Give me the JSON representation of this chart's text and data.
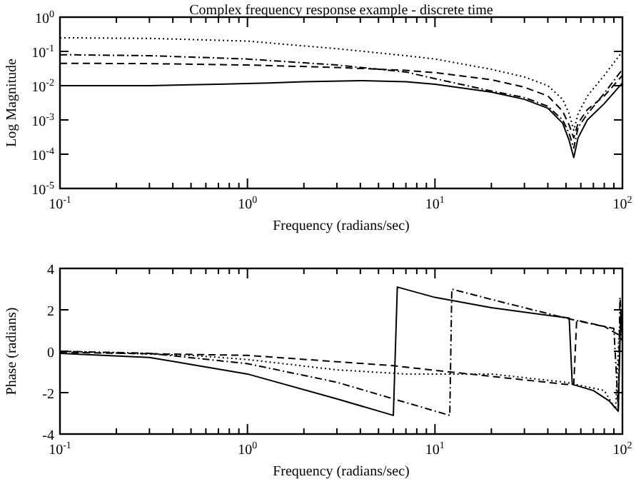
{
  "chart_data": [
    {
      "type": "line",
      "title": "Complex frequency response example - discrete time",
      "xlabel": "Frequency (radians/sec)",
      "ylabel": "Log Magnitude",
      "log": "xy",
      "xlim": [
        0.1,
        100
      ],
      "ylim": [
        1e-05,
        1
      ],
      "xticks": [
        {
          "value": 0.1,
          "label": "10$^{-1}$"
        },
        {
          "value": 0.2,
          "label": null
        },
        {
          "value": 0.3,
          "label": null
        },
        {
          "value": 0.4,
          "label": null
        },
        {
          "value": 0.5,
          "label": null
        },
        {
          "value": 0.6,
          "label": null
        },
        {
          "value": 0.7,
          "label": null
        },
        {
          "value": 0.8,
          "label": null
        },
        {
          "value": 0.9,
          "label": null
        },
        {
          "value": 1,
          "label": "10$^{0}$"
        },
        {
          "value": 2,
          "label": null
        },
        {
          "value": 3,
          "label": null
        },
        {
          "value": 4,
          "label": null
        },
        {
          "value": 5,
          "label": null
        },
        {
          "value": 6,
          "label": null
        },
        {
          "value": 7,
          "label": null
        },
        {
          "value": 8,
          "label": null
        },
        {
          "value": 9,
          "label": null
        },
        {
          "value": 10,
          "label": "10$^{1}$"
        },
        {
          "value": 20,
          "label": null
        },
        {
          "value": 30,
          "label": null
        },
        {
          "value": 40,
          "label": null
        },
        {
          "value": 50,
          "label": null
        },
        {
          "value": 60,
          "label": null
        },
        {
          "value": 70,
          "label": null
        },
        {
          "value": 80,
          "label": null
        },
        {
          "value": 90,
          "label": null
        },
        {
          "value": 100,
          "label": "10$^{2}$"
        }
      ],
      "yticks": [
        {
          "value": 1e-05,
          "label": "10$^{-5}$"
        },
        {
          "value": 0.0001,
          "label": "10$^{-4}$"
        },
        {
          "value": 0.001,
          "label": "10$^{-3}$"
        },
        {
          "value": 0.01,
          "label": "10$^{-2}$"
        },
        {
          "value": 0.1,
          "label": "10$^{-1}$"
        },
        {
          "value": 1,
          "label": "10$^{0}$"
        }
      ],
      "grid": false,
      "series": [
        {
          "color": "#000000",
          "line_style": "solid",
          "x": [
            0.1,
            0.3,
            0.7,
            1.3,
            2,
            4,
            7,
            10,
            20,
            30,
            40,
            48,
            52,
            55,
            58,
            65,
            80,
            100
          ],
          "values": [
            0.01,
            0.01,
            0.011,
            0.012,
            0.013,
            0.014,
            0.013,
            0.011,
            0.0065,
            0.004,
            0.0022,
            0.0008,
            0.00025,
            8e-05,
            0.0003,
            0.001,
            0.003,
            0.012
          ]
        },
        {
          "color": "#000000",
          "line_style": "dashdot",
          "x": [
            0.1,
            0.3,
            1,
            3,
            7,
            10,
            20,
            30,
            40,
            48,
            52,
            55,
            58,
            65,
            80,
            100
          ],
          "values": [
            0.08,
            0.075,
            0.06,
            0.04,
            0.025,
            0.016,
            0.007,
            0.0045,
            0.0025,
            0.001,
            0.0004,
            0.00015,
            0.0006,
            0.0015,
            0.006,
            0.03
          ]
        },
        {
          "color": "#000000",
          "line_style": "dashed",
          "x": [
            0.1,
            0.3,
            1,
            3,
            7,
            10,
            20,
            30,
            40,
            48,
            52,
            55,
            58,
            65,
            80,
            100
          ],
          "values": [
            0.045,
            0.044,
            0.04,
            0.034,
            0.028,
            0.024,
            0.015,
            0.009,
            0.005,
            0.0018,
            0.0007,
            0.0003,
            0.0008,
            0.002,
            0.005,
            0.02
          ]
        },
        {
          "color": "#000000",
          "line_style": "dotted",
          "x": [
            0.1,
            0.3,
            1,
            3,
            7,
            10,
            20,
            30,
            40,
            48,
            52,
            55,
            58,
            65,
            80,
            100
          ],
          "values": [
            0.25,
            0.24,
            0.2,
            0.12,
            0.075,
            0.06,
            0.03,
            0.018,
            0.01,
            0.004,
            0.0015,
            0.0005,
            0.0015,
            0.005,
            0.02,
            0.1
          ]
        }
      ]
    },
    {
      "type": "line",
      "xlabel": "Frequency (radians/sec)",
      "ylabel": "Phase (radians)",
      "log": "x",
      "xlim": [
        0.1,
        100
      ],
      "ylim": [
        -4,
        4
      ],
      "xticks": [
        {
          "value": 0.1,
          "label": "10$^{-1}$"
        },
        {
          "value": 0.2,
          "label": null
        },
        {
          "value": 0.3,
          "label": null
        },
        {
          "value": 0.4,
          "label": null
        },
        {
          "value": 0.5,
          "label": null
        },
        {
          "value": 0.6,
          "label": null
        },
        {
          "value": 0.7,
          "label": null
        },
        {
          "value": 0.8,
          "label": null
        },
        {
          "value": 0.9,
          "label": null
        },
        {
          "value": 1,
          "label": "10$^{0}$"
        },
        {
          "value": 2,
          "label": null
        },
        {
          "value": 3,
          "label": null
        },
        {
          "value": 4,
          "label": null
        },
        {
          "value": 5,
          "label": null
        },
        {
          "value": 6,
          "label": null
        },
        {
          "value": 7,
          "label": null
        },
        {
          "value": 8,
          "label": null
        },
        {
          "value": 9,
          "label": null
        },
        {
          "value": 10,
          "label": "10$^{1}$"
        },
        {
          "value": 20,
          "label": null
        },
        {
          "value": 30,
          "label": null
        },
        {
          "value": 40,
          "label": null
        },
        {
          "value": 50,
          "label": null
        },
        {
          "value": 60,
          "label": null
        },
        {
          "value": 70,
          "label": null
        },
        {
          "value": 80,
          "label": null
        },
        {
          "value": 90,
          "label": null
        },
        {
          "value": 100,
          "label": "10$^{2}$"
        }
      ],
      "yticks": [
        -4,
        -2,
        0,
        2,
        4
      ],
      "grid": false,
      "series": [
        {
          "color": "#000000",
          "line_style": "solid",
          "x": [
            0.1,
            0.3,
            1,
            3,
            6,
            6.3,
            10,
            20,
            52,
            54,
            70,
            85,
            95,
            98,
            100
          ],
          "values": [
            -0.1,
            -0.3,
            -1.1,
            -2.3,
            -3.1,
            3.1,
            2.6,
            2.1,
            1.6,
            -1.6,
            -1.9,
            -2.4,
            -2.9,
            2.0,
            0.5
          ]
        },
        {
          "color": "#000000",
          "line_style": "dashdot",
          "x": [
            0.1,
            0.3,
            1,
            3,
            6,
            12,
            12.3,
            20,
            50,
            70,
            90,
            95,
            97,
            100
          ],
          "values": [
            0,
            -0.1,
            -0.6,
            -1.5,
            -2.3,
            -3.1,
            3.0,
            2.5,
            1.6,
            1.3,
            1.1,
            -2.8,
            2.6,
            0.7
          ]
        },
        {
          "color": "#000000",
          "line_style": "dashed",
          "x": [
            0.1,
            1,
            6,
            12,
            50,
            55,
            57,
            80,
            95,
            100
          ],
          "values": [
            -0.05,
            -0.2,
            -0.7,
            -1.0,
            -1.6,
            -1.6,
            1.5,
            1.2,
            0.8,
            0.5
          ]
        },
        {
          "color": "#000000",
          "line_style": "dotted",
          "x": [
            0.1,
            0.5,
            1,
            3,
            7,
            20,
            50,
            80,
            92,
            96,
            100
          ],
          "values": [
            0,
            -0.2,
            -0.4,
            -0.9,
            -1.1,
            -1.1,
            -1.5,
            -1.9,
            -2.8,
            1.0,
            0.5
          ]
        }
      ]
    }
  ]
}
